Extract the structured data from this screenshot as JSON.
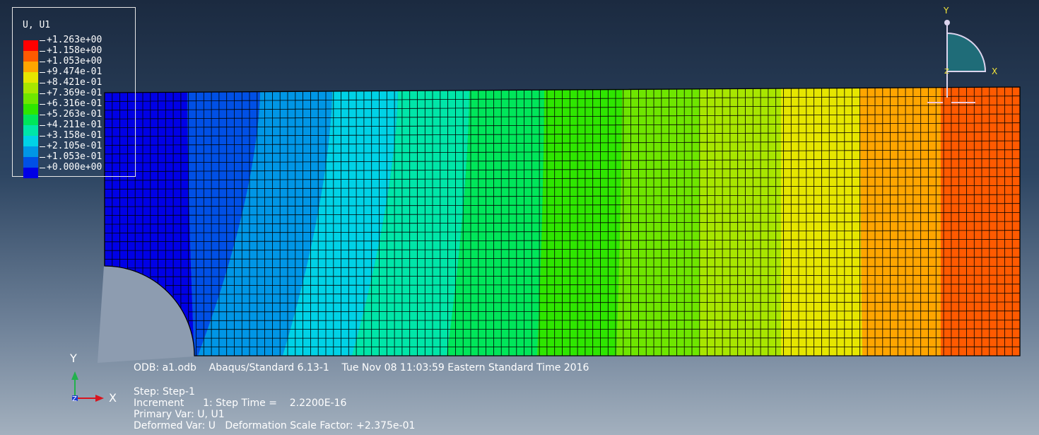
{
  "legend": {
    "title": "U, U1",
    "labels": [
      "+1.263e+00",
      "+1.158e+00",
      "+1.053e+00",
      "+9.474e-01",
      "+8.421e-01",
      "+7.369e-01",
      "+6.316e-01",
      "+5.263e-01",
      "+4.211e-01",
      "+3.158e-01",
      "+2.105e-01",
      "+1.053e-01",
      "+0.000e+00"
    ],
    "colors": [
      "#ff0000",
      "#ff5a00",
      "#ffa500",
      "#e6e600",
      "#a8e600",
      "#6ee600",
      "#2ee600",
      "#00e65a",
      "#00e6a8",
      "#00d2e6",
      "#0096e6",
      "#0050e6",
      "#0000e6"
    ]
  },
  "info": {
    "odb_line": "ODB: a1.odb    Abaqus/Standard 6.13-1    Tue Nov 08 11:03:59 Eastern Standard Time 2016",
    "step_line": "Step: Step-1",
    "increment_line": "Increment      1: Step Time =    2.2200E-16",
    "primary_line": "Primary Var: U, U1",
    "deformed_line": "Deformed Var: U   Deformation Scale Factor: +2.375e-01"
  },
  "triad": {
    "y_label": "Y",
    "x_label": "X",
    "z_label": "Z"
  },
  "view_triad": {
    "y_label": "Y",
    "x_label": "X",
    "z_label": "Z"
  },
  "colors": {
    "mesh_line": "#000000",
    "triad_x": "#d9141e",
    "triad_y": "#22b14c",
    "triad_z": "#1c3ccf",
    "view_triad_fill": "#1f6c78",
    "view_triad_stroke": "#dcd4ee",
    "view_triad_label": "#f5e63a"
  }
}
